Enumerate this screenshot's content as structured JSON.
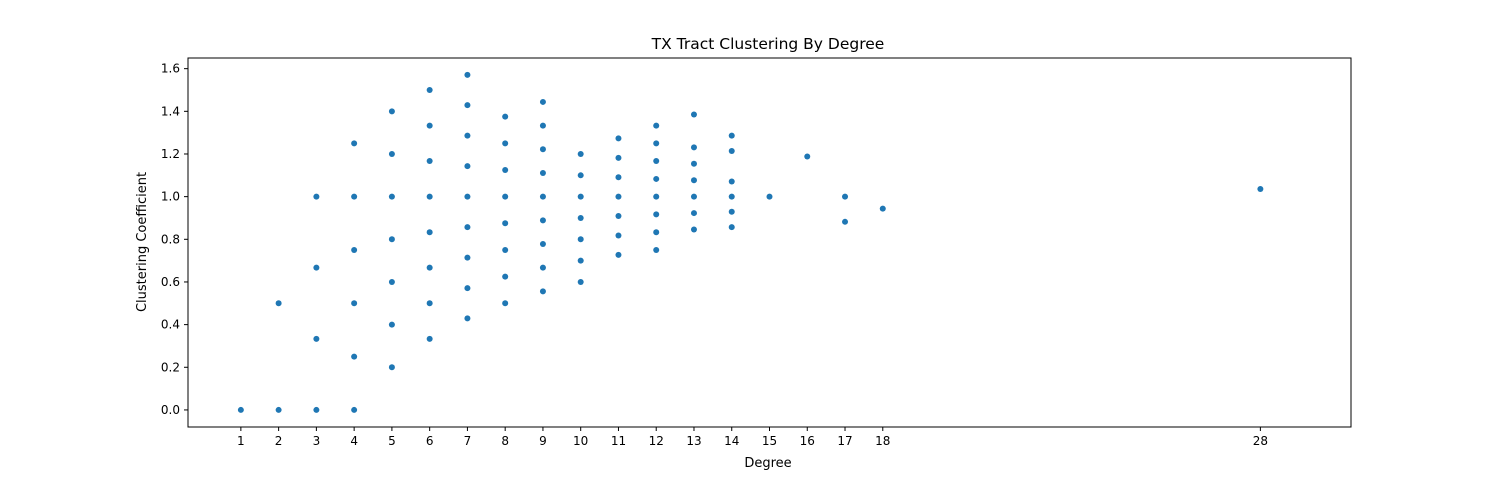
{
  "chart_data": {
    "type": "scatter",
    "title": "TX Tract Clustering By Degree",
    "xlabel": "Degree",
    "ylabel": "Clustering Coefficient",
    "xticks": [
      1,
      2,
      3,
      4,
      5,
      6,
      7,
      8,
      9,
      10,
      11,
      12,
      13,
      14,
      15,
      16,
      17,
      18,
      28
    ],
    "yticks": [
      0.0,
      0.2,
      0.4,
      0.6,
      0.8,
      1.0,
      1.2,
      1.4,
      1.6
    ],
    "ytick_labels": [
      "0.0",
      "0.2",
      "0.4",
      "0.6",
      "0.8",
      "1.0",
      "1.2",
      "1.4",
      "1.6"
    ],
    "xlim": [
      -0.4,
      30.4
    ],
    "ylim": [
      -0.08,
      1.65
    ],
    "grid": false,
    "color": "#1f77b4",
    "points": [
      [
        1,
        0.0
      ],
      [
        2,
        0.0
      ],
      [
        2,
        0.5
      ],
      [
        3,
        0.0
      ],
      [
        3,
        0.333
      ],
      [
        3,
        0.667
      ],
      [
        3,
        1.0
      ],
      [
        4,
        0.0
      ],
      [
        4,
        0.25
      ],
      [
        4,
        0.5
      ],
      [
        4,
        0.75
      ],
      [
        4,
        1.0
      ],
      [
        4,
        1.25
      ],
      [
        5,
        0.2
      ],
      [
        5,
        0.4
      ],
      [
        5,
        0.6
      ],
      [
        5,
        0.8
      ],
      [
        5,
        1.0
      ],
      [
        5,
        1.2
      ],
      [
        5,
        1.4
      ],
      [
        6,
        0.333
      ],
      [
        6,
        0.5
      ],
      [
        6,
        0.667
      ],
      [
        6,
        0.833
      ],
      [
        6,
        1.0
      ],
      [
        6,
        1.167
      ],
      [
        6,
        1.333
      ],
      [
        6,
        1.5
      ],
      [
        7,
        0.429
      ],
      [
        7,
        0.571
      ],
      [
        7,
        0.714
      ],
      [
        7,
        0.857
      ],
      [
        7,
        1.0
      ],
      [
        7,
        1.143
      ],
      [
        7,
        1.286
      ],
      [
        7,
        1.429
      ],
      [
        7,
        1.571
      ],
      [
        8,
        0.5
      ],
      [
        8,
        0.625
      ],
      [
        8,
        0.75
      ],
      [
        8,
        0.875
      ],
      [
        8,
        1.0
      ],
      [
        8,
        1.125
      ],
      [
        8,
        1.25
      ],
      [
        8,
        1.375
      ],
      [
        9,
        0.556
      ],
      [
        9,
        0.667
      ],
      [
        9,
        0.778
      ],
      [
        9,
        0.889
      ],
      [
        9,
        1.0
      ],
      [
        9,
        1.111
      ],
      [
        9,
        1.222
      ],
      [
        9,
        1.333
      ],
      [
        9,
        1.444
      ],
      [
        10,
        0.6
      ],
      [
        10,
        0.7
      ],
      [
        10,
        0.8
      ],
      [
        10,
        0.9
      ],
      [
        10,
        1.0
      ],
      [
        10,
        1.1
      ],
      [
        10,
        1.2
      ],
      [
        11,
        0.727
      ],
      [
        11,
        0.818
      ],
      [
        11,
        0.909
      ],
      [
        11,
        1.0
      ],
      [
        11,
        1.091
      ],
      [
        11,
        1.182
      ],
      [
        11,
        1.273
      ],
      [
        12,
        0.75
      ],
      [
        12,
        0.833
      ],
      [
        12,
        0.917
      ],
      [
        12,
        1.0
      ],
      [
        12,
        1.083
      ],
      [
        12,
        1.167
      ],
      [
        12,
        1.25
      ],
      [
        12,
        1.333
      ],
      [
        13,
        0.846
      ],
      [
        13,
        0.923
      ],
      [
        13,
        1.0
      ],
      [
        13,
        1.077
      ],
      [
        13,
        1.154
      ],
      [
        13,
        1.231
      ],
      [
        13,
        1.385
      ],
      [
        14,
        0.857
      ],
      [
        14,
        0.929
      ],
      [
        14,
        1.0
      ],
      [
        14,
        1.071
      ],
      [
        14,
        1.214
      ],
      [
        14,
        1.286
      ],
      [
        15,
        1.0
      ],
      [
        16,
        1.188
      ],
      [
        17,
        0.882
      ],
      [
        17,
        1.0
      ],
      [
        18,
        0.944
      ],
      [
        28,
        1.036
      ]
    ]
  }
}
